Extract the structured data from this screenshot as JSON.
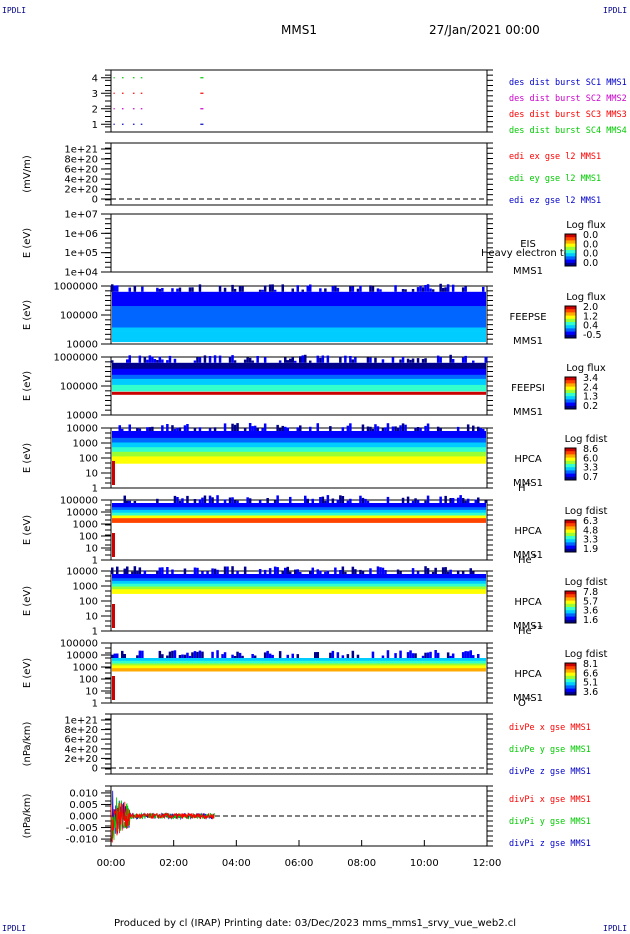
{
  "header": {
    "corner_label": "IPDLI",
    "title": "MMS1",
    "datetime": "27/Jan/2021 00:00"
  },
  "footer": {
    "text": "Produced by cl (IRAP)   Printing date: 03/Dec/2023   mms_mms1_srvy_vue_web2.cl"
  },
  "colors": {
    "black": "#000000",
    "red": "#ff0000",
    "green": "#00cc00",
    "blue": "#0000cc",
    "magenta": "#cc00cc"
  },
  "x_axis": {
    "range_hours": [
      0,
      12
    ],
    "ticks": [
      "00:00",
      "02:00",
      "04:00",
      "06:00",
      "08:00",
      "10:00",
      "12:00"
    ]
  },
  "chart_data": [
    {
      "id": "burst",
      "type": "line",
      "ylabel": "",
      "ylim": [
        0.5,
        4.5
      ],
      "yticks": [
        "4",
        "3",
        "2",
        "1"
      ],
      "series": [
        {
          "name": "des dist burst SC1 MMS1",
          "color": "#0000cc",
          "y": 1
        },
        {
          "name": "des dist burst SC2 MMS2",
          "color": "#cc00cc",
          "y": 2
        },
        {
          "name": "des dist burst SC3 MMS3",
          "color": "#ff0000",
          "y": 3
        },
        {
          "name": "des dist burst SC4 MMS4",
          "color": "#00cc00",
          "y": 4
        }
      ],
      "segments_hours": [
        [
          0.08,
          0.12
        ],
        [
          0.35,
          0.4
        ],
        [
          0.7,
          0.75
        ],
        [
          0.95,
          1.0
        ],
        [
          2.85,
          2.95
        ]
      ]
    },
    {
      "id": "edi",
      "type": "line",
      "ylabel": "(mV/m)",
      "yticks": [
        "1e+21",
        "8e+20",
        "6e+20",
        "4e+20",
        "2e+20",
        "0"
      ],
      "series": [
        {
          "name": "edi ex gse l2 MMS1",
          "color": "#ff0000"
        },
        {
          "name": "edi ey gse l2 MMS1",
          "color": "#00cc00"
        },
        {
          "name": "edi ez gse l2 MMS1",
          "color": "#0000cc"
        }
      ]
    },
    {
      "id": "eis",
      "type": "heatmap",
      "ylabel": "E (eV)",
      "yticks": [
        "1e+07",
        "1e+06",
        "1e+05",
        "1e+04"
      ],
      "labels": [
        "EIS",
        "MMS1"
      ],
      "overlay": "Heavy electron to",
      "colorbar": {
        "title": "Log flux",
        "ticks": [
          "0.0",
          "0.0",
          "0.0",
          "0.0"
        ]
      }
    },
    {
      "id": "feepse",
      "type": "heatmap",
      "ylabel": "E (eV)",
      "yticks": [
        "1000000",
        "100000",
        "10000"
      ],
      "labels": [
        "FEEPSE",
        "MMS1"
      ],
      "colorbar": {
        "title": "Log flux",
        "ticks": [
          "2.0",
          "1.2",
          "0.4",
          "-0.5"
        ]
      }
    },
    {
      "id": "feepsi",
      "type": "heatmap",
      "ylabel": "E (eV)",
      "yticks": [
        "1000000",
        "100000",
        "10000"
      ],
      "labels": [
        "FEEPSI",
        "MMS1"
      ],
      "colorbar": {
        "title": "Log flux",
        "ticks": [
          "3.4",
          "2.4",
          "1.3",
          "0.2"
        ]
      }
    },
    {
      "id": "hpca_h",
      "type": "heatmap",
      "ylabel": "E (eV)",
      "yticks": [
        "10000",
        "1000",
        "100",
        "10",
        "1"
      ],
      "labels": [
        "HPCA",
        "MMS1"
      ],
      "species": "H",
      "species_sup": "+",
      "colorbar": {
        "title": "Log fdist",
        "ticks": [
          "8.6",
          "6.0",
          "3.3",
          "0.7"
        ]
      }
    },
    {
      "id": "hpca_he",
      "type": "heatmap",
      "ylabel": "E (eV)",
      "yticks": [
        "100000",
        "10000",
        "1000",
        "100",
        "10",
        "1"
      ],
      "labels": [
        "HPCA",
        "MMS1"
      ],
      "species": "He",
      "species_sup": "+",
      "colorbar": {
        "title": "Log fdist",
        "ticks": [
          "6.3",
          "4.8",
          "3.3",
          "1.9"
        ]
      }
    },
    {
      "id": "hpca_hepp",
      "type": "heatmap",
      "ylabel": "E (eV)",
      "yticks": [
        "10000",
        "1000",
        "100",
        "10",
        "1"
      ],
      "labels": [
        "HPCA",
        "MMS1"
      ],
      "species": "He",
      "species_sup": "++",
      "colorbar": {
        "title": "Log fdist",
        "ticks": [
          "7.8",
          "5.7",
          "3.6",
          "1.6"
        ]
      }
    },
    {
      "id": "hpca_o",
      "type": "heatmap",
      "ylabel": "E (eV)",
      "yticks": [
        "100000",
        "10000",
        "1000",
        "100",
        "10",
        "1"
      ],
      "labels": [
        "HPCA",
        "MMS1"
      ],
      "species": "O",
      "species_sup": "+",
      "colorbar": {
        "title": "Log fdist",
        "ticks": [
          "8.1",
          "6.6",
          "5.1",
          "3.6"
        ]
      }
    },
    {
      "id": "divpe",
      "type": "line",
      "ylabel": "(nPa/km)",
      "yticks": [
        "1e+21",
        "8e+20",
        "6e+20",
        "4e+20",
        "2e+20",
        "0"
      ],
      "series": [
        {
          "name": "divPe x gse MMS1",
          "color": "#ff0000"
        },
        {
          "name": "divPe y gse MMS1",
          "color": "#00cc00"
        },
        {
          "name": "divPe z gse MMS1",
          "color": "#0000cc"
        }
      ]
    },
    {
      "id": "divpi",
      "type": "line",
      "ylabel": "(nPa/km)",
      "ylim": [
        -0.013,
        0.013
      ],
      "yticks": [
        "0.010",
        "0.005",
        "0.000",
        "-0.005",
        "-0.010"
      ],
      "ytick_values": [
        0.01,
        0.005,
        0.0,
        -0.005,
        -0.01
      ],
      "data_end_hours": 3.3,
      "series": [
        {
          "name": "divPi x gse MMS1",
          "color": "#ff0000"
        },
        {
          "name": "divPi y gse MMS1",
          "color": "#00cc00"
        },
        {
          "name": "divPi z gse MMS1",
          "color": "#0000cc"
        }
      ]
    }
  ]
}
